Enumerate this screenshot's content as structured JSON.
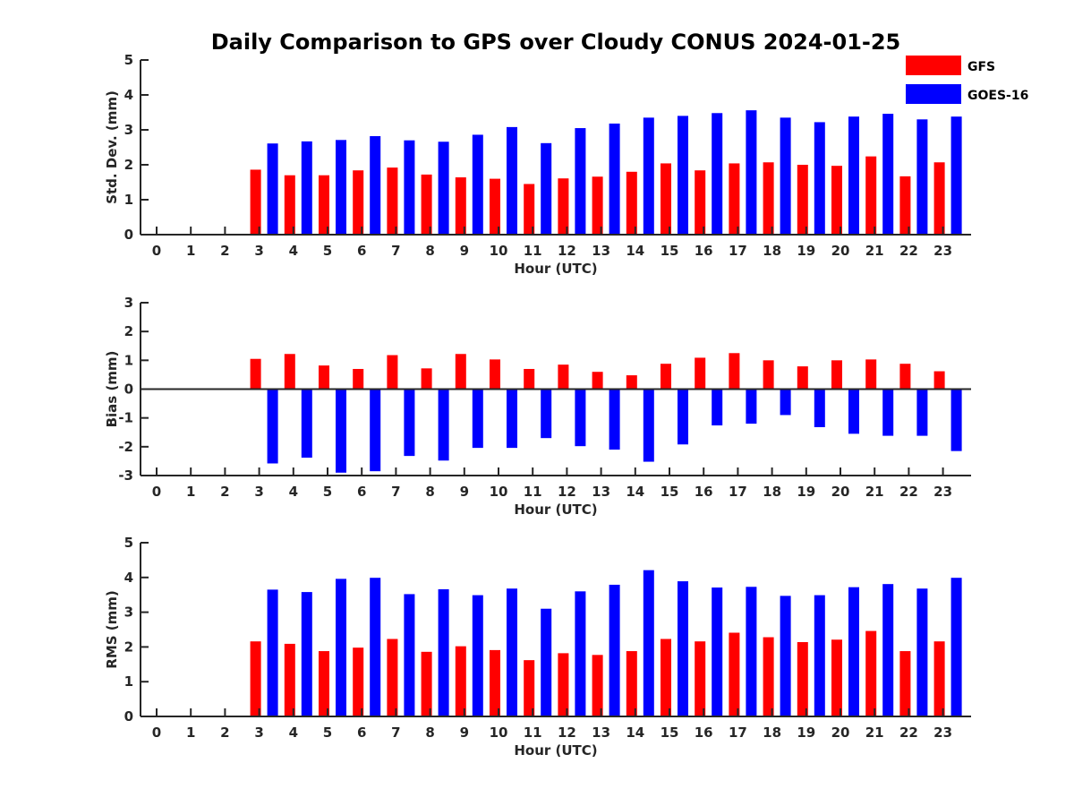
{
  "title": "Daily Comparison to GPS over Cloudy CONUS 2024-01-25",
  "colors": {
    "GFS": "#ff0000",
    "GOES-16": "#0000ff"
  },
  "legend": {
    "placement": "top-right",
    "entries": [
      "GFS",
      "GOES-16"
    ]
  },
  "chart_data": [
    {
      "type": "bar",
      "xlabel": "Hour (UTC)",
      "ylabel": "Std. Dev. (mm)",
      "ylim": [
        0,
        5
      ],
      "yticks": [
        "0",
        "1",
        "2",
        "3",
        "4",
        "5"
      ],
      "categories": [
        "0",
        "1",
        "2",
        "3",
        "4",
        "5",
        "6",
        "7",
        "8",
        "9",
        "10",
        "11",
        "12",
        "13",
        "14",
        "15",
        "16",
        "17",
        "18",
        "19",
        "20",
        "21",
        "22",
        "23"
      ],
      "series": [
        {
          "name": "GFS",
          "values": [
            null,
            null,
            null,
            1.86,
            1.7,
            1.7,
            1.84,
            1.92,
            1.72,
            1.64,
            1.6,
            1.45,
            1.61,
            1.66,
            1.8,
            2.04,
            1.84,
            2.04,
            2.07,
            2.0,
            1.97,
            2.24,
            1.67,
            2.07
          ]
        },
        {
          "name": "GOES-16",
          "values": [
            null,
            null,
            null,
            2.61,
            2.67,
            2.71,
            2.82,
            2.7,
            2.66,
            2.86,
            3.08,
            2.62,
            3.05,
            3.18,
            3.35,
            3.4,
            3.48,
            3.56,
            3.35,
            3.22,
            3.38,
            3.46,
            3.3,
            3.38
          ]
        }
      ]
    },
    {
      "type": "bar",
      "xlabel": "Hour (UTC)",
      "ylabel": "Bias (mm)",
      "ylim": [
        -3,
        3
      ],
      "yticks": [
        "-3",
        "-2",
        "-1",
        "0",
        "1",
        "2",
        "3"
      ],
      "categories": [
        "0",
        "1",
        "2",
        "3",
        "4",
        "5",
        "6",
        "7",
        "8",
        "9",
        "10",
        "11",
        "12",
        "13",
        "14",
        "15",
        "16",
        "17",
        "18",
        "19",
        "20",
        "21",
        "22",
        "23"
      ],
      "series": [
        {
          "name": "GFS",
          "values": [
            null,
            null,
            null,
            1.05,
            1.22,
            0.82,
            0.7,
            1.18,
            0.72,
            1.22,
            1.03,
            0.7,
            0.85,
            0.6,
            0.48,
            0.88,
            1.09,
            1.25,
            1.0,
            0.79,
            1.0,
            1.03,
            0.88,
            0.62
          ]
        },
        {
          "name": "GOES-16",
          "values": [
            null,
            null,
            null,
            -2.58,
            -2.38,
            -2.9,
            -2.85,
            -2.32,
            -2.48,
            -2.04,
            -2.04,
            -1.7,
            -1.98,
            -2.1,
            -2.52,
            -1.92,
            -1.26,
            -1.2,
            -0.9,
            -1.32,
            -1.55,
            -1.62,
            -1.62,
            -2.15
          ]
        }
      ]
    },
    {
      "type": "bar",
      "xlabel": "Hour (UTC)",
      "ylabel": "RMS (mm)",
      "ylim": [
        0,
        5
      ],
      "yticks": [
        "0",
        "1",
        "2",
        "3",
        "4",
        "5"
      ],
      "categories": [
        "0",
        "1",
        "2",
        "3",
        "4",
        "5",
        "6",
        "7",
        "8",
        "9",
        "10",
        "11",
        "12",
        "13",
        "14",
        "15",
        "16",
        "17",
        "18",
        "19",
        "20",
        "21",
        "22",
        "23"
      ],
      "series": [
        {
          "name": "GFS",
          "values": [
            null,
            null,
            null,
            2.16,
            2.09,
            1.88,
            1.98,
            2.23,
            1.86,
            2.02,
            1.91,
            1.62,
            1.82,
            1.77,
            1.88,
            2.23,
            2.16,
            2.41,
            2.28,
            2.14,
            2.21,
            2.46,
            1.88,
            2.16
          ]
        },
        {
          "name": "GOES-16",
          "values": [
            null,
            null,
            null,
            3.65,
            3.58,
            3.96,
            3.99,
            3.52,
            3.66,
            3.49,
            3.68,
            3.1,
            3.6,
            3.79,
            4.21,
            3.89,
            3.71,
            3.73,
            3.47,
            3.49,
            3.72,
            3.81,
            3.68,
            3.99
          ]
        }
      ]
    }
  ]
}
